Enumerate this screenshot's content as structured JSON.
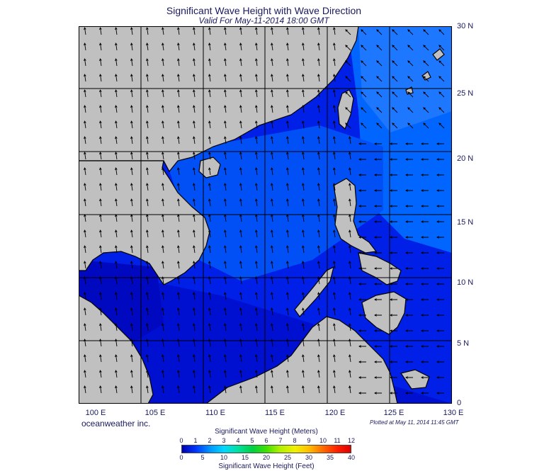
{
  "title": "Significant Wave Height with Wave Direction",
  "subtitle": "Valid For May-11-2014 18:00 GMT",
  "lat_labels": [
    "30 N",
    "25 N",
    "20 N",
    "15 N",
    "10 N",
    "5 N",
    "0"
  ],
  "lon_labels": [
    "100 E",
    "105 E",
    "110 E",
    "115 E",
    "120 E",
    "125 E",
    "130 E"
  ],
  "credit": "oceanweather inc.",
  "plotted": "Plotted at May 11, 2014 11:45 GMT",
  "scale": {
    "meters_title": "Significant Wave Height (Meters)",
    "meters_ticks": [
      "0",
      "1",
      "2",
      "3",
      "4",
      "5",
      "6",
      "7",
      "8",
      "9",
      "10",
      "11",
      "12"
    ],
    "feet_title": "Significant Wave Height (Feet)",
    "feet_ticks": [
      "0",
      "5",
      "10",
      "15",
      "20",
      "25",
      "30",
      "35",
      "40"
    ]
  },
  "colors": {
    "land": "#c0c0c0",
    "ocean_low": "#0000d8",
    "ocean_mid": "#0040f0",
    "ocean_high": "#0078ff",
    "grid": "#000000",
    "arrow": "#000000"
  }
}
